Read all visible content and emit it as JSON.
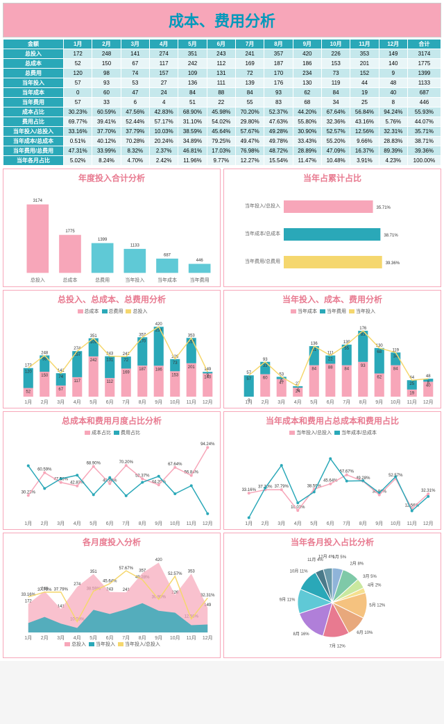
{
  "title": "成本、费用分析",
  "colors": {
    "pink": "#f7a6b9",
    "teal": "#2aa8b8",
    "lteal": "#5fc9d6",
    "yellow": "#f5d76e",
    "bg": "#ffffff",
    "grid": "#e0e0e0"
  },
  "months": [
    "1月",
    "2月",
    "3月",
    "4月",
    "5月",
    "6月",
    "7月",
    "8月",
    "9月",
    "10月",
    "11月",
    "12月"
  ],
  "table": {
    "header": [
      "金额",
      "1月",
      "2月",
      "3月",
      "4月",
      "5月",
      "6月",
      "7月",
      "8月",
      "9月",
      "10月",
      "11月",
      "12月",
      "合计"
    ],
    "rows": [
      [
        "总投入",
        172,
        248,
        141,
        274,
        351,
        243,
        241,
        357,
        420,
        226,
        353,
        149,
        3174
      ],
      [
        "总成本",
        52,
        150,
        67,
        117,
        242,
        112,
        169,
        187,
        186,
        153,
        201,
        140,
        1775
      ],
      [
        "总费用",
        120,
        98,
        74,
        157,
        109,
        131,
        72,
        170,
        234,
        73,
        152,
        9,
        1399
      ],
      [
        "当年投入",
        57,
        93,
        53,
        27,
        136,
        111,
        139,
        176,
        130,
        119,
        44,
        48,
        1133
      ],
      [
        "当年成本",
        0,
        60,
        47,
        24,
        84,
        88,
        84,
        93,
        62,
        84,
        19,
        40,
        687
      ],
      [
        "当年费用",
        57,
        33,
        6,
        4,
        51,
        22,
        55,
        83,
        68,
        34,
        25,
        8,
        446
      ],
      [
        "成本占比",
        "30.23%",
        "60.59%",
        "47.56%",
        "42.83%",
        "68.90%",
        "45.98%",
        "70.20%",
        "52.37%",
        "44.20%",
        "67.64%",
        "56.84%",
        "94.24%",
        "55.93%"
      ],
      [
        "费用占比",
        "69.77%",
        "39.41%",
        "52.44%",
        "57.17%",
        "31.10%",
        "54.02%",
        "29.80%",
        "47.63%",
        "55.80%",
        "32.36%",
        "43.16%",
        "5.76%",
        "44.07%"
      ],
      [
        "当年投入/总投入",
        "33.16%",
        "37.70%",
        "37.79%",
        "10.03%",
        "38.59%",
        "45.64%",
        "57.67%",
        "49.28%",
        "30.90%",
        "52.57%",
        "12.56%",
        "32.31%",
        "35.71%"
      ],
      [
        "当年成本/总成本",
        "0.51%",
        "40.12%",
        "70.28%",
        "20.24%",
        "34.89%",
        "79.25%",
        "49.47%",
        "49.78%",
        "33.43%",
        "55.20%",
        "9.66%",
        "28.83%",
        "38.71%"
      ],
      [
        "当年费用/总费用",
        "47.31%",
        "33.99%",
        "8.32%",
        "2.37%",
        "46.81%",
        "17.03%",
        "76.98%",
        "48.72%",
        "28.89%",
        "47.09%",
        "16.37%",
        "89.39%",
        "39.36%"
      ],
      [
        "当年各月占比",
        "5.02%",
        "8.24%",
        "4.70%",
        "2.42%",
        "11.96%",
        "9.77%",
        "12.27%",
        "15.54%",
        "11.47%",
        "10.48%",
        "3.91%",
        "4.23%",
        "100.00%"
      ]
    ]
  },
  "panel1": {
    "title": "年度投入合计分析",
    "cats": [
      "总投入",
      "总成本",
      "总费用",
      "当年投入",
      "当年成本",
      "当年费用"
    ],
    "vals": [
      3174,
      1775,
      1399,
      1133,
      687,
      446
    ],
    "colors": [
      "#f7a6b9",
      "#f7a6b9",
      "#5fc9d6",
      "#5fc9d6",
      "#5fc9d6",
      "#5fc9d6"
    ]
  },
  "panel2": {
    "title": "当年占累计占比",
    "cats": [
      "当年投入/总投入",
      "当年成本/总成本",
      "当年费用/总费用"
    ],
    "vals": [
      35.71,
      38.71,
      39.36
    ],
    "colors": [
      "#f7a6b9",
      "#2aa8b8",
      "#f5d76e"
    ]
  },
  "panel3": {
    "title": "总投入、总成本、总费用分析",
    "legend": [
      "总成本",
      "总费用",
      "总投入"
    ],
    "cost": [
      52,
      150,
      67,
      117,
      242,
      112,
      169,
      187,
      186,
      153,
      201,
      140
    ],
    "fee": [
      120,
      98,
      74,
      157,
      109,
      131,
      72,
      170,
      234,
      73,
      152,
      9
    ],
    "total": [
      172,
      248,
      141,
      274,
      351,
      243,
      241,
      357,
      420,
      226,
      353,
      149
    ]
  },
  "panel4": {
    "title": "当年投入、成本、费用分析",
    "legend": [
      "当年成本",
      "当年费用",
      "当年投入"
    ],
    "cost": [
      0,
      60,
      47,
      24,
      84,
      88,
      84,
      93,
      62,
      84,
      19,
      40
    ],
    "fee": [
      57,
      33,
      6,
      4,
      51,
      22,
      55,
      83,
      68,
      34,
      25,
      8
    ],
    "total": [
      57,
      93,
      53,
      27,
      136,
      111,
      139,
      176,
      130,
      119,
      44,
      48
    ]
  },
  "panel5": {
    "title": "总成本和费用月度占比分析",
    "legend": [
      "成本占比",
      "费用占比"
    ],
    "cost": [
      30.23,
      60.59,
      47.56,
      42.83,
      68.9,
      45.98,
      70.2,
      52.37,
      44.2,
      67.64,
      56.84,
      94.24
    ],
    "fee": [
      69.77,
      39.41,
      52.44,
      57.17,
      31.1,
      54.02,
      29.8,
      47.63,
      55.8,
      32.36,
      43.16,
      5.76
    ]
  },
  "panel6": {
    "title": "当年成本和费用占总成本和费用占比",
    "legend": [
      "当年投入/总投入",
      "当年成本/总成本"
    ],
    "a": [
      33.16,
      37.7,
      37.79,
      10.03,
      38.59,
      45.64,
      57.67,
      49.28,
      30.9,
      52.57,
      12.56,
      32.31
    ],
    "b": [
      0.51,
      40.12,
      70.28,
      20.24,
      34.89,
      79.25,
      49.47,
      49.78,
      33.43,
      55.2,
      9.66,
      28.83
    ]
  },
  "panel7": {
    "title": "各月度投入分析",
    "legend": [
      "总投入",
      "当年投入",
      "当年投入/总投入"
    ],
    "total": [
      172,
      248,
      141,
      274,
      351,
      243,
      241,
      357,
      420,
      226,
      353,
      149
    ],
    "cur": [
      57,
      93,
      53,
      27,
      136,
      111,
      139,
      176,
      130,
      119,
      44,
      48
    ],
    "pct": [
      33.16,
      37.7,
      37.79,
      10.03,
      38.59,
      45.64,
      57.67,
      49.28,
      30.9,
      52.57,
      12.56,
      32.31
    ]
  },
  "panel8": {
    "title": "当年各月投入占比分析",
    "labels": [
      "1月 5%",
      "2月 8%",
      "3月 5%",
      "4月 2%",
      "5月 12%",
      "6月 10%",
      "7月 12%",
      "8月 16%",
      "9月 11%",
      "10月 11%",
      "11月 4%",
      "12月 4%"
    ],
    "vals": [
      5.02,
      8.24,
      4.7,
      2.42,
      11.96,
      9.77,
      12.27,
      15.54,
      11.47,
      10.48,
      3.91,
      4.23
    ],
    "colors": [
      "#8fb4d9",
      "#7fc9a8",
      "#c9e89f",
      "#f5e08f",
      "#f5c27f",
      "#e8a87c",
      "#e87a90",
      "#b07fd9",
      "#5fc9d6",
      "#2aa8b8",
      "#4a7a8a",
      "#6a9aaa"
    ]
  }
}
